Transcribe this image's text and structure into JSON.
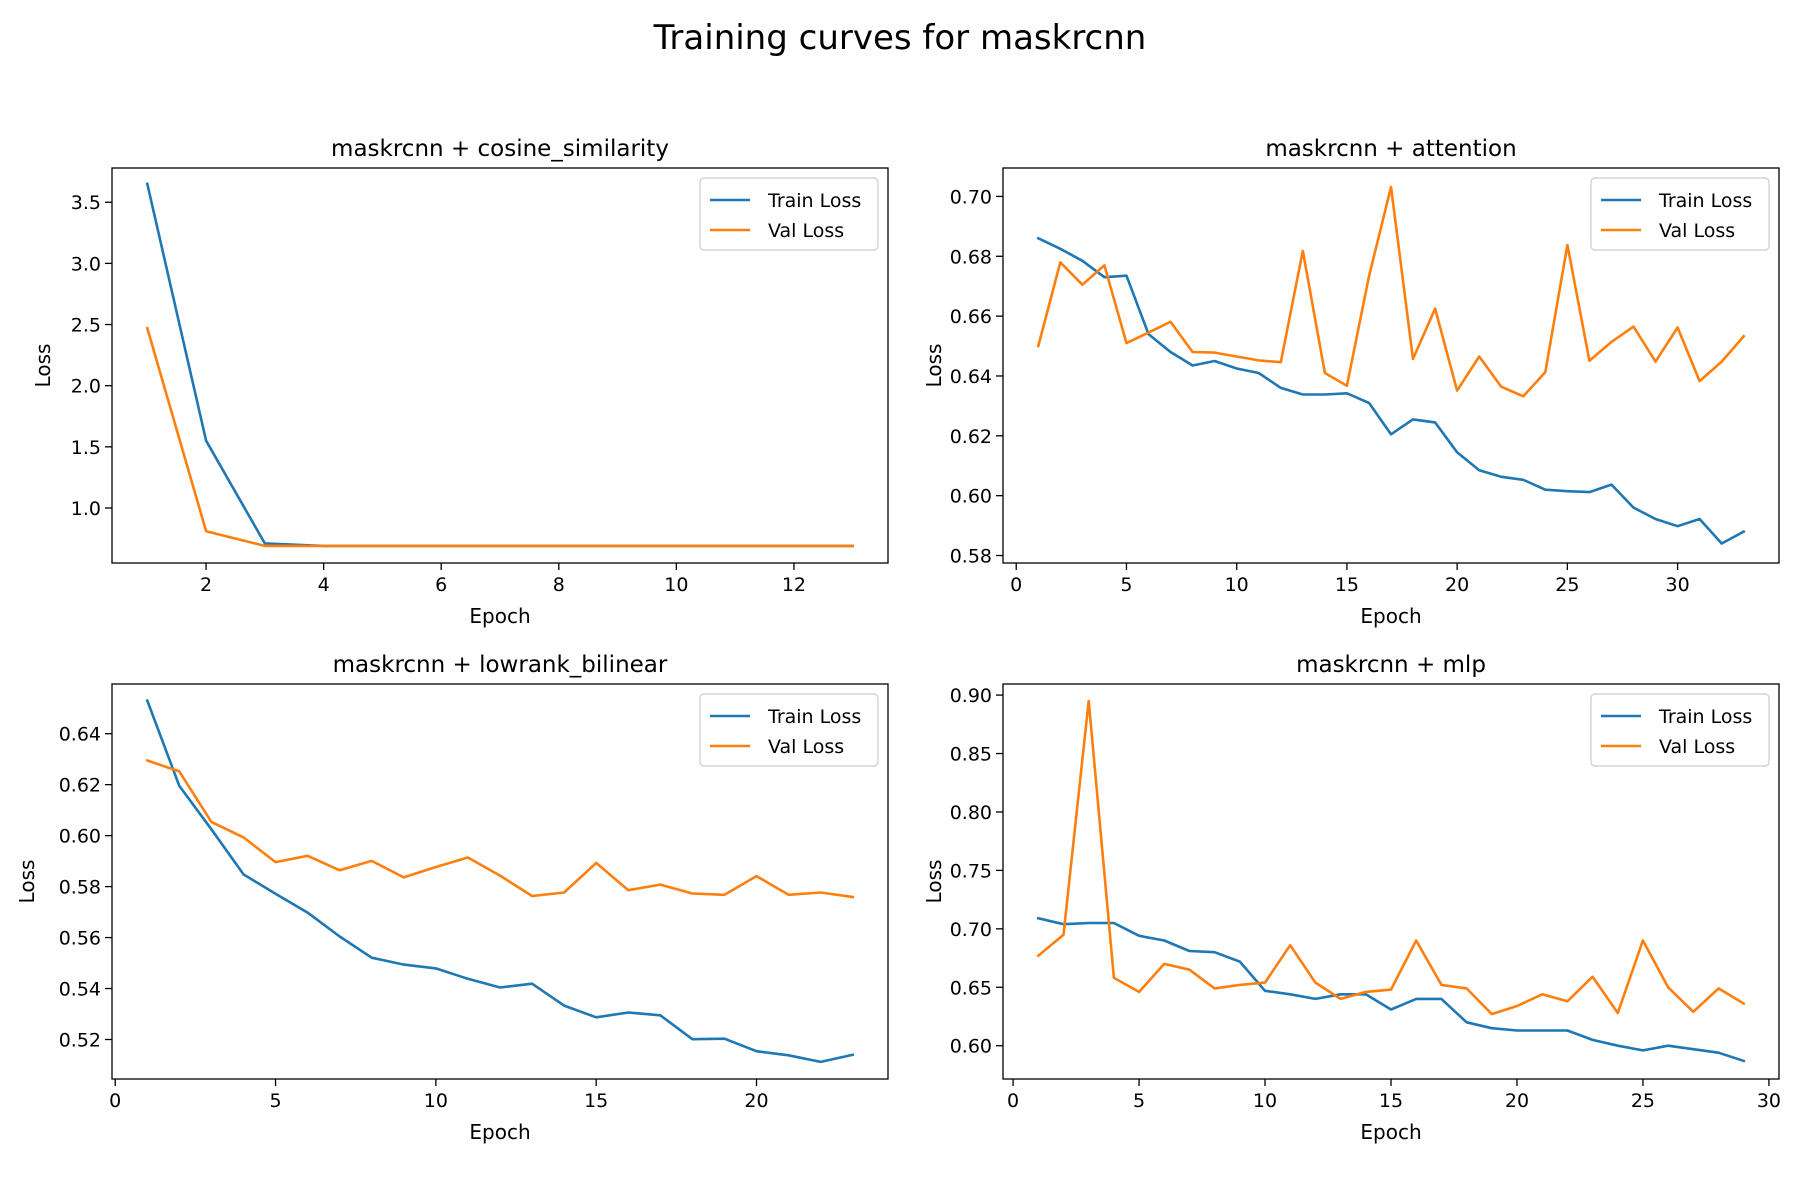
{
  "title": "Training curves for maskrcnn",
  "colors": {
    "train": "#1f77b4",
    "val": "#ff7f0e"
  },
  "chart_data": [
    {
      "type": "line",
      "title": "maskrcnn + cosine_similarity",
      "xlabel": "Epoch",
      "ylabel": "Loss",
      "xlim": [
        0.4,
        13.6
      ],
      "ylim": [
        0.55,
        3.78
      ],
      "xticks": [
        2,
        4,
        6,
        8,
        10,
        12
      ],
      "yticks": [
        1.0,
        1.5,
        2.0,
        2.5,
        3.0,
        3.5
      ],
      "ytick_labels": [
        "1.0",
        "1.5",
        "2.0",
        "2.5",
        "3.0",
        "3.5"
      ],
      "legend": "top-right",
      "grid": false,
      "x": [
        1,
        2,
        3,
        4,
        5,
        6,
        7,
        8,
        9,
        10,
        11,
        12,
        13
      ],
      "series": [
        {
          "name": "Train Loss",
          "values": [
            3.65,
            1.55,
            0.71,
            0.69,
            0.69,
            0.69,
            0.69,
            0.69,
            0.69,
            0.69,
            0.69,
            0.69,
            0.69
          ]
        },
        {
          "name": "Val Loss",
          "values": [
            2.47,
            0.81,
            0.69,
            0.69,
            0.69,
            0.69,
            0.69,
            0.69,
            0.69,
            0.69,
            0.69,
            0.69,
            0.69
          ]
        }
      ]
    },
    {
      "type": "line",
      "title": "maskrcnn + attention",
      "xlabel": "Epoch",
      "ylabel": "Loss",
      "xlim": [
        -0.6,
        34.6
      ],
      "ylim": [
        0.5775,
        0.7095
      ],
      "xticks": [
        0,
        5,
        10,
        15,
        20,
        25,
        30
      ],
      "yticks": [
        0.58,
        0.6,
        0.62,
        0.64,
        0.66,
        0.68,
        0.7
      ],
      "ytick_labels": [
        "0.58",
        "0.60",
        "0.62",
        "0.64",
        "0.66",
        "0.68",
        "0.70"
      ],
      "legend": "top-right",
      "grid": false,
      "x": [
        1,
        2,
        3,
        4,
        5,
        6,
        7,
        8,
        9,
        10,
        11,
        12,
        13,
        14,
        15,
        16,
        17,
        18,
        19,
        20,
        21,
        22,
        23,
        24,
        25,
        26,
        27,
        28,
        29,
        30,
        31,
        32,
        33
      ],
      "series": [
        {
          "name": "Train Loss",
          "values": [
            0.686,
            0.6825,
            0.6785,
            0.673,
            0.6735,
            0.654,
            0.648,
            0.6435,
            0.645,
            0.6425,
            0.641,
            0.636,
            0.6338,
            0.6338,
            0.6342,
            0.631,
            0.6205,
            0.6255,
            0.6245,
            0.6145,
            0.6085,
            0.6063,
            0.6053,
            0.602,
            0.6015,
            0.6012,
            0.6037,
            0.596,
            0.5922,
            0.5898,
            0.5922,
            0.584,
            0.588
          ]
        },
        {
          "name": "Val Loss",
          "values": [
            0.65,
            0.678,
            0.6705,
            0.677,
            0.651,
            0.6545,
            0.6581,
            0.648,
            0.6478,
            0.6465,
            0.6452,
            0.6446,
            0.6818,
            0.641,
            0.6367,
            0.6733,
            0.7032,
            0.6457,
            0.6625,
            0.6351,
            0.6465,
            0.6364,
            0.6332,
            0.6413,
            0.6838,
            0.6451,
            0.6514,
            0.6565,
            0.6448,
            0.6562,
            0.6383,
            0.6448,
            0.6533
          ]
        }
      ]
    },
    {
      "type": "line",
      "title": "maskrcnn + lowrank_bilinear",
      "xlabel": "Epoch",
      "ylabel": "Loss",
      "xlim": [
        -0.1,
        24.1
      ],
      "ylim": [
        0.5045,
        0.6595
      ],
      "xticks": [
        0,
        5,
        10,
        15,
        20
      ],
      "yticks": [
        0.52,
        0.54,
        0.56,
        0.58,
        0.6,
        0.62,
        0.64
      ],
      "ytick_labels": [
        "0.52",
        "0.54",
        "0.56",
        "0.58",
        "0.60",
        "0.62",
        "0.64"
      ],
      "legend": "top-right",
      "grid": false,
      "x": [
        1,
        2,
        3,
        4,
        5,
        6,
        7,
        8,
        9,
        10,
        11,
        12,
        13,
        14,
        15,
        16,
        17,
        18,
        19,
        20,
        21,
        22,
        23
      ],
      "series": [
        {
          "name": "Train Loss",
          "values": [
            0.653,
            0.6195,
            0.6025,
            0.5848,
            0.5772,
            0.5698,
            0.5604,
            0.5521,
            0.5494,
            0.5479,
            0.5438,
            0.5404,
            0.5419,
            0.5333,
            0.5287,
            0.5306,
            0.5295,
            0.5201,
            0.5203,
            0.5154,
            0.5138,
            0.5112,
            0.514
          ]
        },
        {
          "name": "Val Loss",
          "values": [
            0.6295,
            0.6252,
            0.6054,
            0.5993,
            0.5896,
            0.5921,
            0.5864,
            0.5901,
            0.5836,
            0.5877,
            0.5914,
            0.5843,
            0.5763,
            0.5777,
            0.5893,
            0.5786,
            0.5808,
            0.5773,
            0.5768,
            0.5841,
            0.5768,
            0.5777,
            0.5759
          ]
        }
      ]
    },
    {
      "type": "line",
      "title": "maskrcnn + mlp",
      "xlabel": "Epoch",
      "ylabel": "Loss",
      "xlim": [
        -0.4,
        30.4
      ],
      "ylim": [
        0.5715,
        0.9095
      ],
      "xticks": [
        0,
        5,
        10,
        15,
        20,
        25,
        30
      ],
      "yticks": [
        0.6,
        0.65,
        0.7,
        0.75,
        0.8,
        0.85,
        0.9
      ],
      "ytick_labels": [
        "0.60",
        "0.65",
        "0.70",
        "0.75",
        "0.80",
        "0.85",
        "0.90"
      ],
      "legend": "top-right",
      "grid": false,
      "x": [
        1,
        2,
        3,
        4,
        5,
        6,
        7,
        8,
        9,
        10,
        11,
        12,
        13,
        14,
        15,
        16,
        17,
        18,
        19,
        20,
        21,
        22,
        23,
        24,
        25,
        26,
        27,
        28,
        29
      ],
      "series": [
        {
          "name": "Train Loss",
          "values": [
            0.709,
            0.704,
            0.705,
            0.705,
            0.694,
            0.69,
            0.681,
            0.68,
            0.672,
            0.647,
            0.644,
            0.64,
            0.644,
            0.644,
            0.631,
            0.64,
            0.64,
            0.62,
            0.615,
            0.613,
            0.613,
            0.613,
            0.605,
            0.6,
            0.596,
            0.6,
            0.597,
            0.594,
            0.587
          ]
        },
        {
          "name": "Val Loss",
          "values": [
            0.677,
            0.695,
            0.895,
            0.658,
            0.646,
            0.67,
            0.665,
            0.649,
            0.652,
            0.654,
            0.686,
            0.654,
            0.64,
            0.646,
            0.648,
            0.69,
            0.652,
            0.649,
            0.627,
            0.634,
            0.644,
            0.638,
            0.659,
            0.628,
            0.69,
            0.65,
            0.629,
            0.649,
            0.636
          ]
        }
      ]
    }
  ]
}
